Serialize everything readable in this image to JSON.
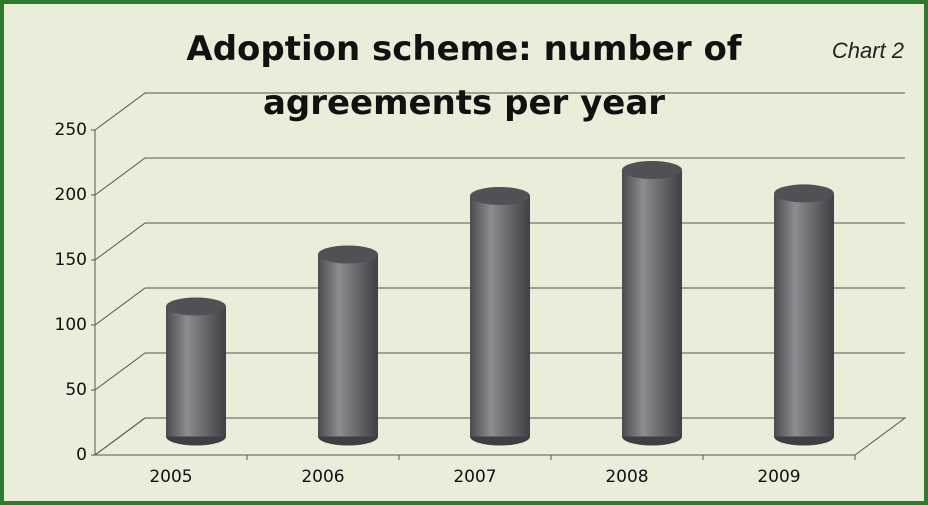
{
  "chart_data": {
    "type": "bar3d",
    "title": "Adoption scheme: number of agreements per year",
    "annotation": "Chart 2",
    "categories": [
      "2005",
      "2006",
      "2007",
      "2008",
      "2009"
    ],
    "values": [
      100,
      140,
      185,
      205,
      187
    ],
    "color": "#6d6f72",
    "ylim": [
      0,
      250
    ],
    "yticks": [
      0,
      50,
      100,
      150,
      200,
      250
    ],
    "grid": true
  }
}
